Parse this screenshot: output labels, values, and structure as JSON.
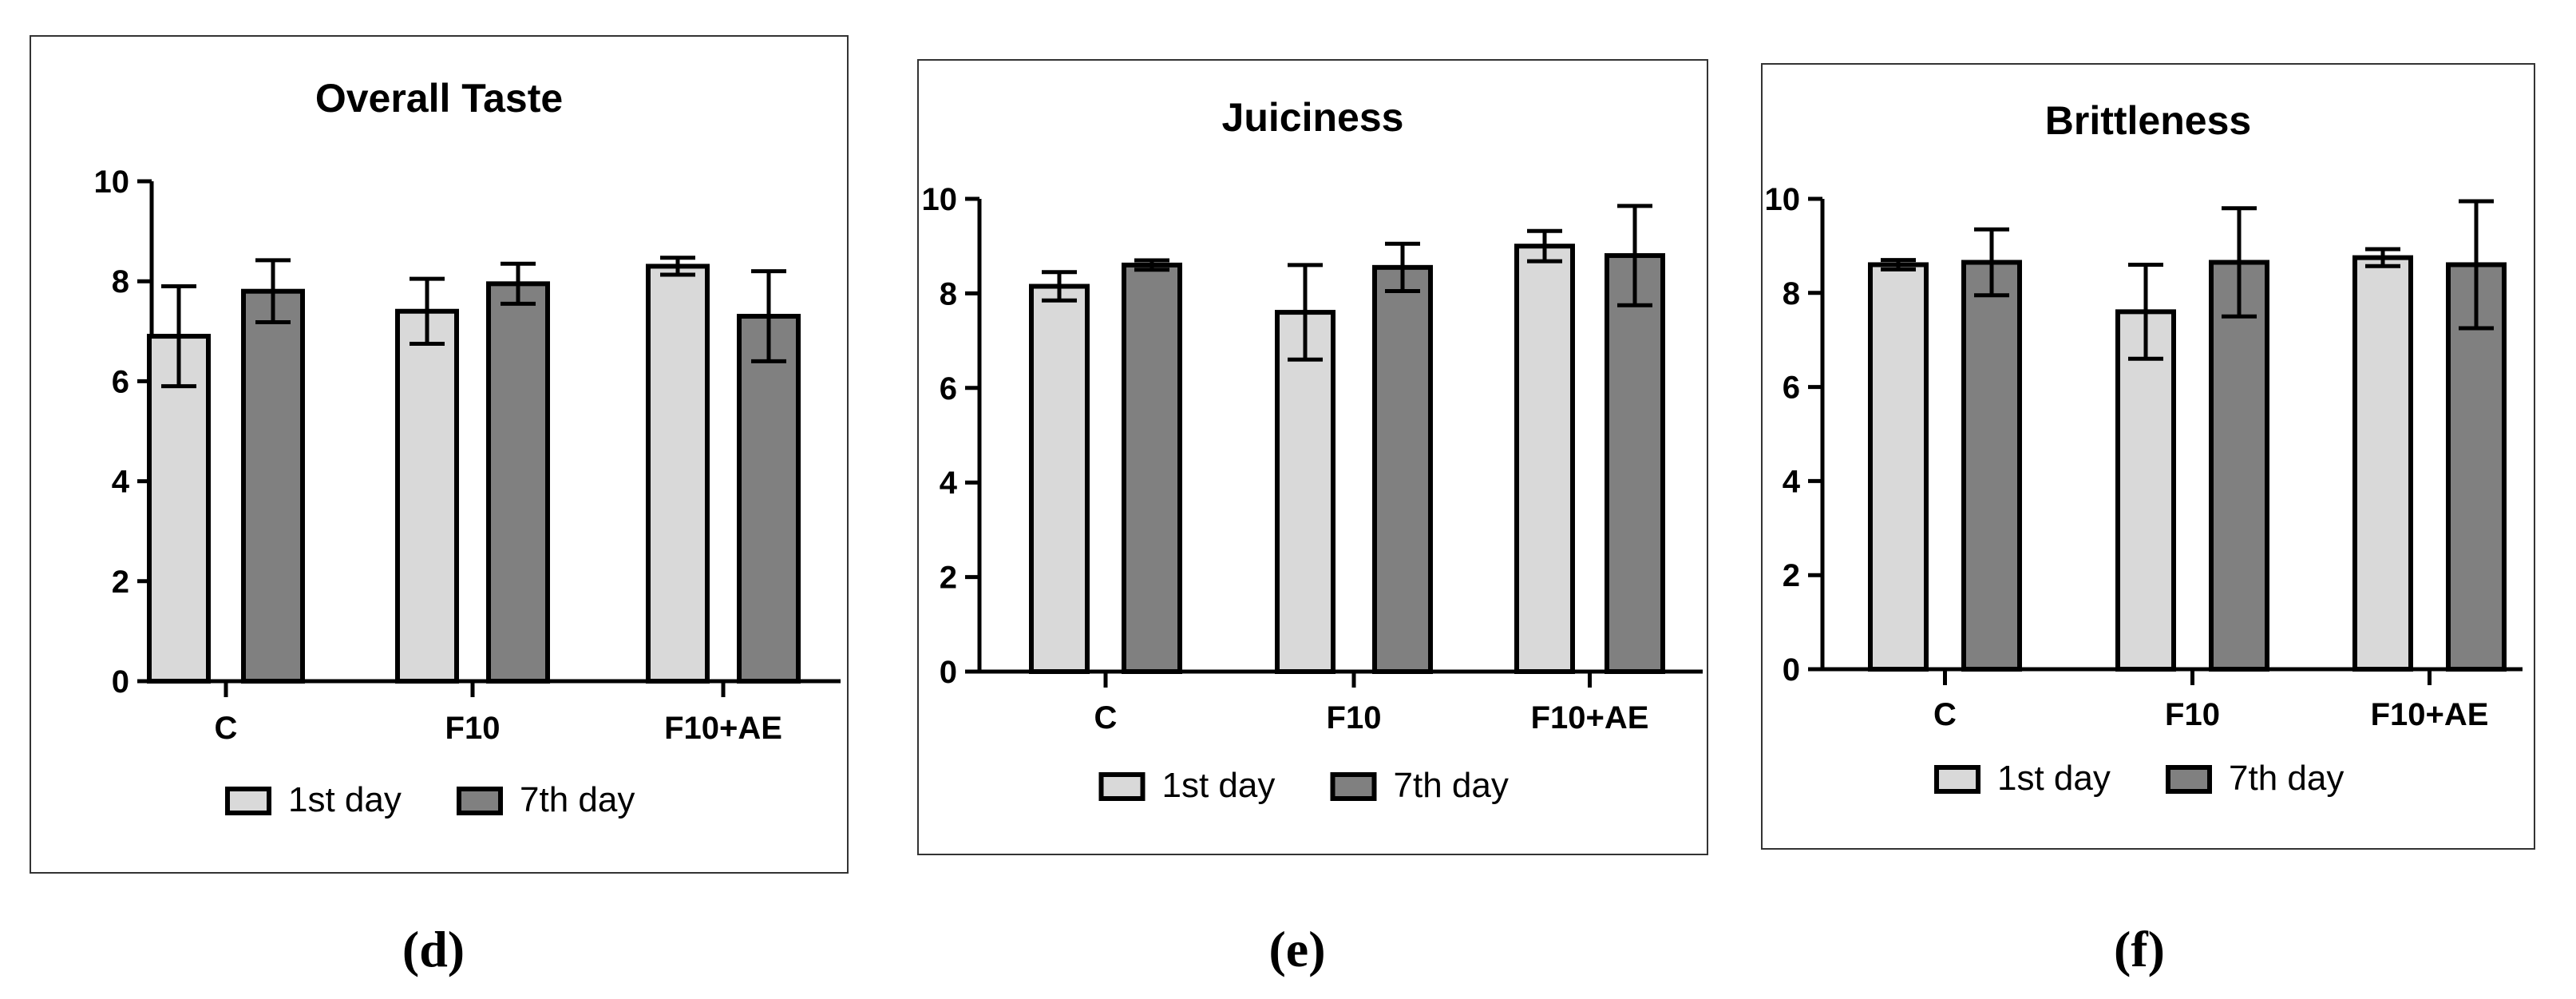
{
  "colors": {
    "first_day": "#d9d9d9",
    "seventh_day": "#808080",
    "stroke": "#000000",
    "background": "#ffffff"
  },
  "chart_data": [
    {
      "type": "bar",
      "panel_label": "(d)",
      "title": "Overall Taste",
      "xlabel": "",
      "ylabel": "",
      "ylim": [
        0,
        10
      ],
      "yticks": [
        "0",
        "2",
        "4",
        "6",
        "8",
        "10"
      ],
      "categories": [
        "C",
        "F10",
        "F10+AE"
      ],
      "legend": {
        "position": "bottom-center"
      },
      "series": [
        {
          "name": "1st day",
          "values": [
            6.9,
            7.4,
            8.3
          ],
          "errors": [
            1.0,
            0.65,
            0.17
          ]
        },
        {
          "name": "7th day",
          "values": [
            7.8,
            7.95,
            7.3
          ],
          "errors": [
            0.62,
            0.4,
            0.9
          ]
        }
      ]
    },
    {
      "type": "bar",
      "panel_label": "(e)",
      "title": "Juiciness",
      "xlabel": "",
      "ylabel": "",
      "ylim": [
        0,
        10
      ],
      "yticks": [
        "0",
        "2",
        "4",
        "6",
        "8",
        "10"
      ],
      "categories": [
        "C",
        "F10",
        "F10+AE"
      ],
      "legend": {
        "position": "bottom-center"
      },
      "series": [
        {
          "name": "1st day",
          "values": [
            8.15,
            7.6,
            9.0
          ],
          "errors": [
            0.3,
            1.0,
            0.32
          ]
        },
        {
          "name": "7th day",
          "values": [
            8.6,
            8.55,
            8.8
          ],
          "errors": [
            0.1,
            0.5,
            1.05
          ]
        }
      ]
    },
    {
      "type": "bar",
      "panel_label": "(f)",
      "title": "Brittleness",
      "xlabel": "",
      "ylabel": "",
      "ylim": [
        0,
        10
      ],
      "yticks": [
        "0",
        "2",
        "4",
        "6",
        "8",
        "10"
      ],
      "categories": [
        "C",
        "F10",
        "F10+AE"
      ],
      "legend": {
        "position": "bottom-center"
      },
      "series": [
        {
          "name": "1st day",
          "values": [
            8.6,
            7.6,
            8.75
          ],
          "errors": [
            0.1,
            1.0,
            0.18
          ]
        },
        {
          "name": "7th day",
          "values": [
            8.65,
            8.65,
            8.6
          ],
          "errors": [
            0.7,
            1.15,
            1.35
          ]
        }
      ]
    }
  ]
}
